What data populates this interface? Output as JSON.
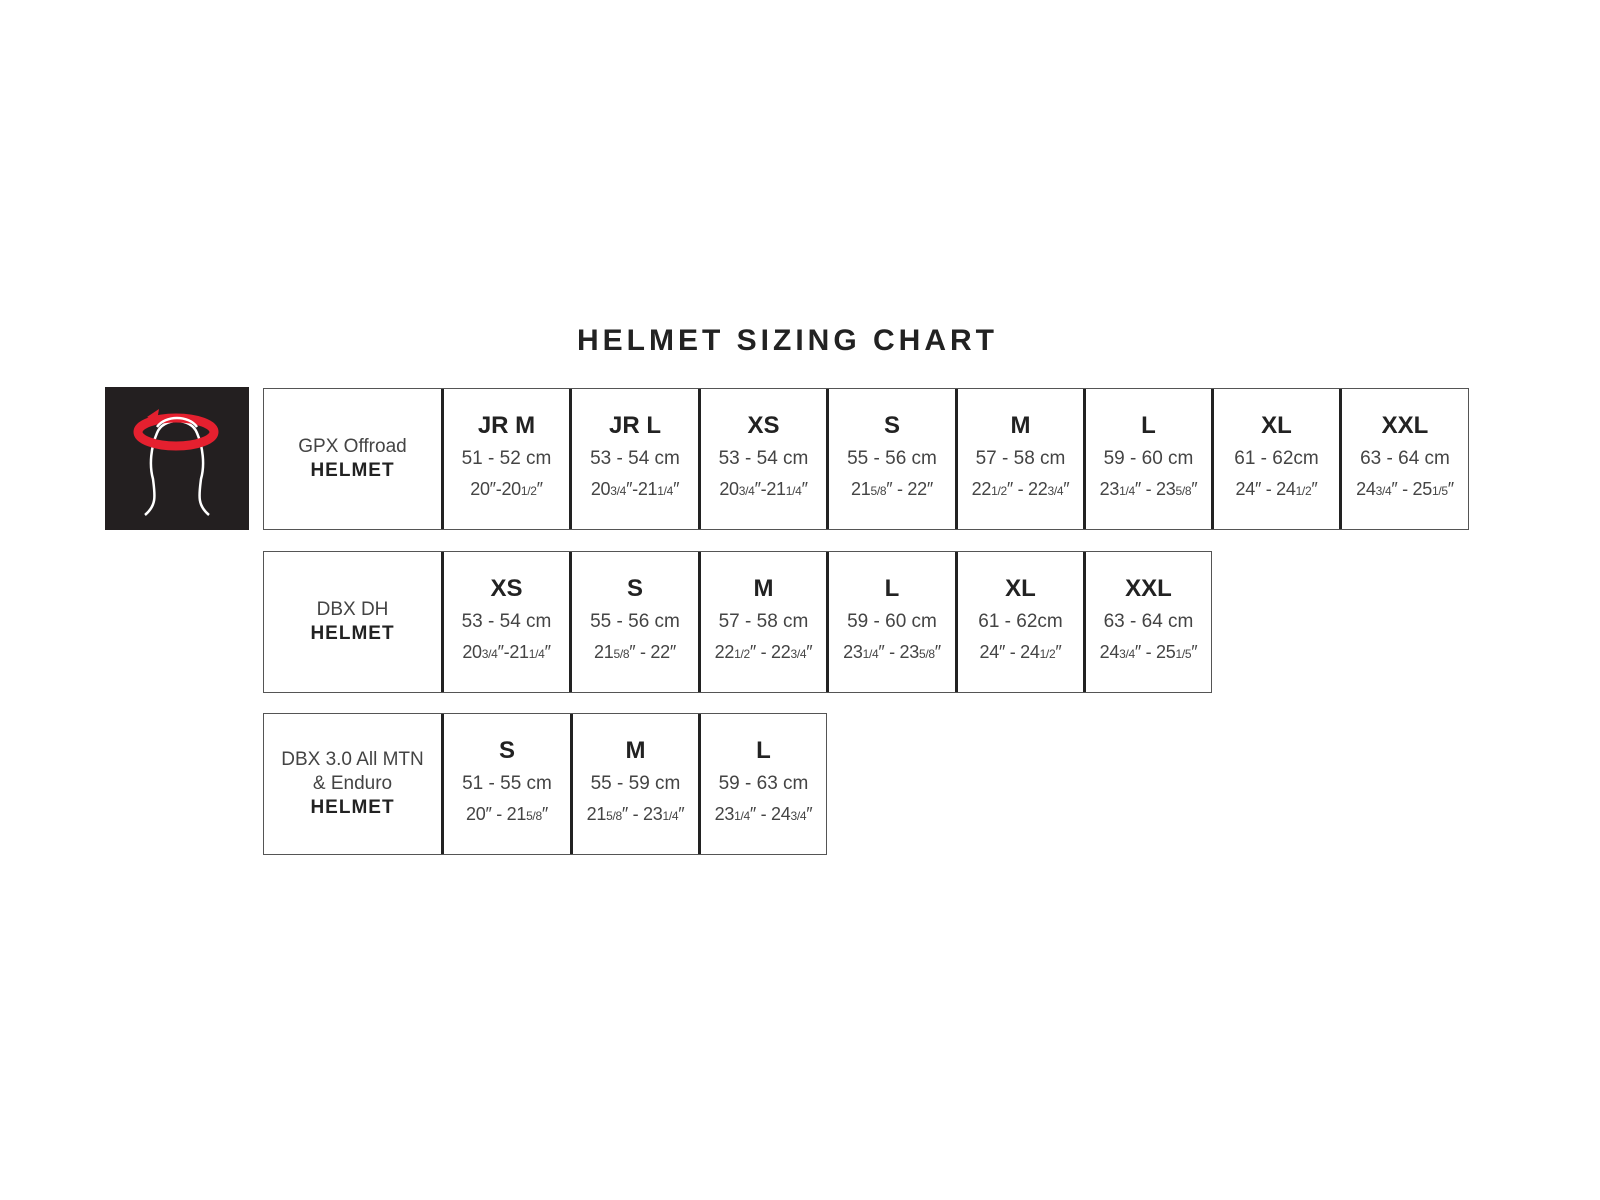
{
  "title": "HELMET SIZING CHART",
  "icon": {
    "name": "head-circumference-icon",
    "colors": {
      "background": "#231f20",
      "arrow": "#e4202f",
      "outline": "#ffffff"
    }
  },
  "tables": [
    {
      "model": "GPX Offroad",
      "type": "HELMET",
      "sizes": [
        {
          "size": "JR M",
          "cm": "51 - 52 cm",
          "inches": "20″-20 1/2″"
        },
        {
          "size": "JR L",
          "cm": "53 - 54 cm",
          "inches": "20 3/4″-21 1/4″"
        },
        {
          "size": "XS",
          "cm": "53 - 54 cm",
          "inches": "20 3/4″-21 1/4″"
        },
        {
          "size": "S",
          "cm": "55 - 56 cm",
          "inches": "21 5/8″ - 22″"
        },
        {
          "size": "M",
          "cm": "57 - 58 cm",
          "inches": "22 1/2″ - 22 3/4″"
        },
        {
          "size": "L",
          "cm": "59 - 60 cm",
          "inches": "23 1/4″ - 23 5/8″"
        },
        {
          "size": "XL",
          "cm": "61 - 62cm",
          "inches": "24″ - 24 1/2″"
        },
        {
          "size": "XXL",
          "cm": "63 - 64 cm",
          "inches": "24 3/4″ - 25 1/5″"
        }
      ]
    },
    {
      "model": "DBX DH",
      "type": "HELMET",
      "sizes": [
        {
          "size": "XS",
          "cm": "53 - 54 cm",
          "inches": "20 3/4″-21 1/4″"
        },
        {
          "size": "S",
          "cm": "55 - 56 cm",
          "inches": "21 5/8″ - 22″"
        },
        {
          "size": "M",
          "cm": "57 - 58 cm",
          "inches": "22 1/2″ - 22 3/4″"
        },
        {
          "size": "L",
          "cm": "59 - 60 cm",
          "inches": "23 1/4″ - 23 5/8″"
        },
        {
          "size": "XL",
          "cm": "61 - 62cm",
          "inches": "24″ - 24 1/2″"
        },
        {
          "size": "XXL",
          "cm": "63 - 64 cm",
          "inches": "24 3/4″ - 25 1/5″"
        }
      ]
    },
    {
      "model": "DBX 3.0 All MTN",
      "model_line2": "& Enduro",
      "type": "HELMET",
      "sizes": [
        {
          "size": "S",
          "cm": "51 - 55 cm",
          "inches": "20″ - 21 5/8″"
        },
        {
          "size": "M",
          "cm": "55 - 59 cm",
          "inches": "21 5/8″ - 23 1/4″"
        },
        {
          "size": "L",
          "cm": "59 - 63 cm",
          "inches": "23 1/4″ - 24 3/4″"
        }
      ]
    }
  ]
}
